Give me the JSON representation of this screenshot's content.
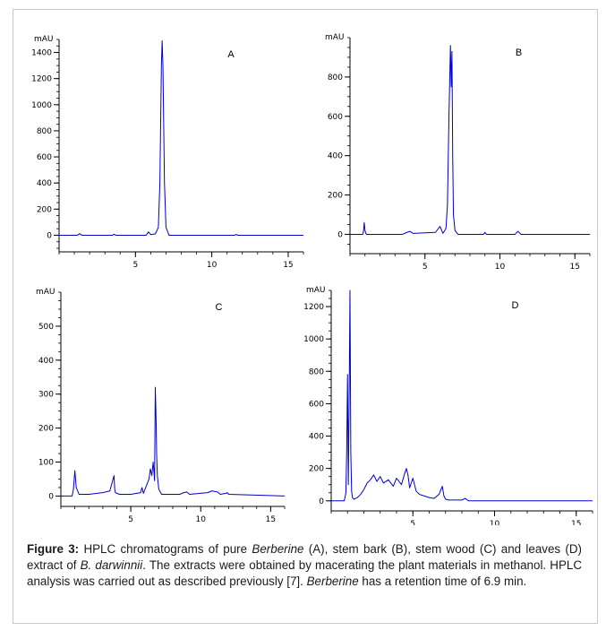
{
  "colors": {
    "trace": "#0000c8",
    "axis": "#000000"
  },
  "caption": {
    "label": "Figure 3:",
    "segments": [
      {
        "text": " HPLC chromatograms of pure ",
        "italic": false
      },
      {
        "text": "Berberine",
        "italic": true
      },
      {
        "text": " (A), stem bark (B), stem wood (C) and leaves (D) extract of ",
        "italic": false
      },
      {
        "text": "B. darwinnii",
        "italic": true
      },
      {
        "text": ". The extracts were obtained by macerating the plant materials in methanol. HPLC analysis was carried out as described previously [7]. ",
        "italic": false
      },
      {
        "text": "Berberine",
        "italic": true
      },
      {
        "text": " has a retention time of 6.9 min.",
        "italic": false
      }
    ]
  },
  "chart_data": [
    {
      "type": "line",
      "panel": "A",
      "ylabel": "mAU",
      "xlim": [
        0,
        16
      ],
      "ylim": [
        -100,
        1500
      ],
      "xticks": [
        5,
        10,
        15
      ],
      "yticks": [
        0,
        200,
        400,
        600,
        800,
        1000,
        1200,
        1400
      ],
      "series": [
        {
          "x": [
            0,
            1.2,
            1.35,
            1.5,
            3.5,
            3.6,
            3.7,
            5.7,
            5.85,
            6.0,
            6.3,
            6.5,
            6.6,
            6.7,
            6.75,
            6.8,
            6.9,
            7.0,
            7.2,
            11.5,
            11.6,
            11.7,
            16
          ],
          "y": [
            0,
            0,
            12,
            0,
            0,
            8,
            0,
            0,
            25,
            5,
            10,
            60,
            400,
            1300,
            1490,
            1300,
            400,
            60,
            0,
            0,
            6,
            0,
            0
          ]
        }
      ]
    },
    {
      "type": "line",
      "panel": "B",
      "ylabel": "mAU",
      "xlim": [
        0,
        16
      ],
      "ylim": [
        -80,
        1000
      ],
      "xticks": [
        5,
        10,
        15
      ],
      "yticks": [
        0,
        200,
        400,
        600,
        800
      ],
      "series": [
        {
          "x": [
            0,
            0.85,
            0.9,
            0.95,
            1.0,
            1.05,
            1.1,
            3.5,
            3.8,
            4.0,
            4.2,
            5.7,
            6.0,
            6.2,
            6.4,
            6.5,
            6.6,
            6.7,
            6.75,
            6.8,
            6.85,
            6.9,
            7.0,
            7.2,
            8.9,
            9.0,
            9.1,
            11.0,
            11.2,
            11.4,
            16
          ],
          "y": [
            0,
            0,
            15,
            60,
            20,
            5,
            0,
            0,
            10,
            15,
            5,
            10,
            40,
            5,
            30,
            150,
            600,
            960,
            750,
            930,
            400,
            100,
            20,
            0,
            0,
            10,
            0,
            0,
            15,
            0,
            0
          ]
        }
      ]
    },
    {
      "type": "line",
      "panel": "C",
      "ylabel": "mAU",
      "xlim": [
        0,
        16
      ],
      "ylim": [
        -20,
        600
      ],
      "xticks": [
        5,
        10,
        15
      ],
      "yticks": [
        0,
        100,
        200,
        300,
        400,
        500
      ],
      "series": [
        {
          "x": [
            0,
            0.8,
            0.9,
            1.0,
            1.1,
            1.3,
            2.0,
            3.0,
            3.5,
            3.6,
            3.8,
            3.85,
            3.9,
            4.0,
            4.2,
            5.0,
            5.7,
            5.8,
            5.9,
            6.3,
            6.4,
            6.5,
            6.6,
            6.7,
            6.75,
            6.8,
            6.85,
            6.9,
            7.0,
            7.2,
            8.5,
            8.8,
            9.0,
            9.2,
            10.5,
            10.8,
            11.2,
            11.4,
            11.8,
            11.9,
            12.0,
            16
          ],
          "y": [
            0,
            0,
            20,
            75,
            25,
            5,
            5,
            10,
            15,
            30,
            60,
            20,
            10,
            8,
            5,
            5,
            10,
            25,
            8,
            50,
            80,
            60,
            100,
            45,
            320,
            240,
            120,
            60,
            20,
            5,
            5,
            10,
            12,
            5,
            10,
            15,
            12,
            5,
            8,
            10,
            5,
            0
          ]
        }
      ]
    },
    {
      "type": "line",
      "panel": "D",
      "ylabel": "mAU",
      "xlim": [
        0,
        16
      ],
      "ylim": [
        -40,
        1300
      ],
      "xticks": [
        5,
        10,
        15
      ],
      "yticks": [
        0,
        200,
        400,
        600,
        800,
        1000,
        1200
      ],
      "series": [
        {
          "x": [
            0,
            0.8,
            0.9,
            0.95,
            1.0,
            1.05,
            1.1,
            1.15,
            1.2,
            1.25,
            1.3,
            1.4,
            1.6,
            1.8,
            2.0,
            2.2,
            2.4,
            2.6,
            2.8,
            3.0,
            3.2,
            3.5,
            3.8,
            4.0,
            4.3,
            4.5,
            4.6,
            4.7,
            4.8,
            5.0,
            5.2,
            5.4,
            5.7,
            6.0,
            6.3,
            6.6,
            6.8,
            6.9,
            7.0,
            7.2,
            8.0,
            8.2,
            8.4,
            16
          ],
          "y": [
            0,
            0,
            50,
            320,
            780,
            100,
            650,
            1300,
            300,
            60,
            20,
            10,
            20,
            40,
            70,
            110,
            130,
            160,
            120,
            150,
            110,
            130,
            90,
            140,
            100,
            170,
            200,
            160,
            80,
            140,
            60,
            40,
            30,
            20,
            15,
            40,
            90,
            30,
            10,
            5,
            5,
            15,
            0,
            0
          ]
        }
      ]
    }
  ]
}
